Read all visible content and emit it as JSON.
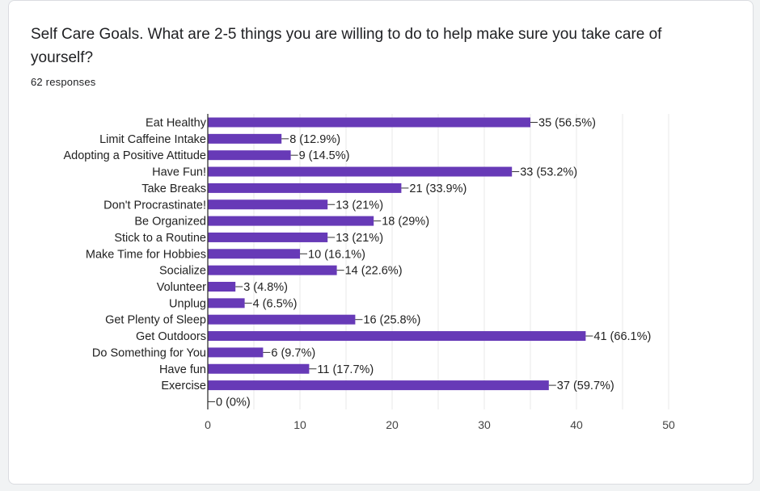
{
  "question": {
    "title": "Self Care Goals. What are 2-5 things you are willing to do to help make sure you take care of yourself?",
    "responses": "62 responses"
  },
  "colors": {
    "bar": "#673ab7",
    "grid": "#e8e8e8",
    "axis": "#333333",
    "text": "#222222"
  },
  "chart_data": {
    "type": "bar",
    "orientation": "horizontal",
    "categories": [
      "Eat Healthy",
      "Limit Caffeine Intake",
      "Adopting a Positive Attitude",
      "Have Fun!",
      "Take Breaks",
      "Don't Procrastinate!",
      "Be Organized",
      "Stick to a Routine",
      "Make Time for Hobbies",
      "Socialize",
      "Volunteer",
      "Unplug",
      "Get Plenty of Sleep",
      "Get Outdoors",
      "Do Something for You",
      "Have fun",
      "Exercise",
      ""
    ],
    "values": [
      35,
      8,
      9,
      33,
      21,
      13,
      18,
      13,
      10,
      14,
      3,
      4,
      16,
      41,
      6,
      11,
      37,
      0
    ],
    "data_labels": [
      "35 (56.5%)",
      "8 (12.9%)",
      "9 (14.5%)",
      "33 (53.2%)",
      "21 (33.9%)",
      "13 (21%)",
      "18 (29%)",
      "13 (21%)",
      "10 (16.1%)",
      "14 (22.6%)",
      "3 (4.8%)",
      "4 (6.5%)",
      "16 (25.8%)",
      "41 (66.1%)",
      "6 (9.7%)",
      "11 (17.7%)",
      "37 (59.7%)",
      "0 (0%)"
    ],
    "xlim": [
      0,
      50
    ],
    "xticks": [
      0,
      10,
      20,
      30,
      40,
      50
    ],
    "grid": true
  }
}
